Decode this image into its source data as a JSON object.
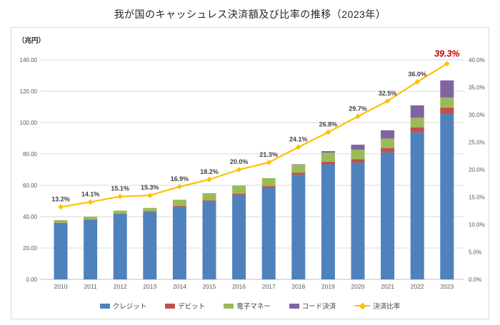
{
  "page_title": "我が国のキャッシュレス決済額及び比率の推移（2023年）",
  "chart_data": {
    "type": "bar",
    "subtype": "stacked-bar-with-line",
    "title": "我が国のキャッシュレス決済額及び比率の推移（2023年）",
    "categories": [
      "2010",
      "2011",
      "2012",
      "2013",
      "2014",
      "2015",
      "2016",
      "2017",
      "2018",
      "2019",
      "2020",
      "2021",
      "2022",
      "2023"
    ],
    "series": [
      {
        "key": "credit",
        "name": "クレジット",
        "type": "bar",
        "color": "#4F81BD",
        "values": [
          36.0,
          38.0,
          41.7,
          43.0,
          46.3,
          49.8,
          53.9,
          58.4,
          66.7,
          73.4,
          74.5,
          81.0,
          93.8,
          105.7
        ]
      },
      {
        "key": "debit",
        "name": "デビット",
        "type": "bar",
        "color": "#C0504D",
        "values": [
          0.2,
          0.3,
          0.3,
          0.4,
          0.5,
          0.6,
          0.8,
          1.1,
          1.4,
          1.7,
          2.2,
          2.8,
          3.2,
          3.9
        ]
      },
      {
        "key": "emoney",
        "name": "電子マネー",
        "type": "bar",
        "color": "#9BBB59",
        "values": [
          1.6,
          1.7,
          1.9,
          2.2,
          4.0,
          4.6,
          5.1,
          5.1,
          5.2,
          5.7,
          6.0,
          6.0,
          6.1,
          6.4
        ]
      },
      {
        "key": "code",
        "name": "コード決済",
        "type": "bar",
        "color": "#8064A2",
        "values": [
          0,
          0,
          0,
          0,
          0,
          0,
          0,
          0,
          0.2,
          1.0,
          3.2,
          5.3,
          7.9,
          10.9
        ]
      },
      {
        "key": "ratio",
        "name": "決済比率",
        "type": "line",
        "axis": "right",
        "color": "#FFC000",
        "values": [
          13.2,
          14.1,
          15.1,
          15.3,
          16.9,
          18.2,
          20.0,
          21.3,
          24.1,
          26.8,
          29.7,
          32.5,
          36.0,
          39.3
        ],
        "labels": [
          "13.2%",
          "14.1%",
          "15.1%",
          "15.3%",
          "16.9%",
          "18.2%",
          "20.0%",
          "21.3%",
          "24.1%",
          "26.8%",
          "29.7%",
          "32.5%",
          "36.0%",
          "39.3%"
        ],
        "label_color": "#404040",
        "last_label_style": {
          "color": "#C00000",
          "bold": true,
          "italic": true
        }
      }
    ],
    "left_axis": {
      "title": "（兆円）",
      "min": 0,
      "max": 140,
      "step": 20,
      "ticks": [
        "0.00",
        "20.00",
        "40.00",
        "60.00",
        "80.00",
        "100.00",
        "120.00",
        "140.00"
      ]
    },
    "right_axis": {
      "min": 0,
      "max": 40,
      "step": 5,
      "ticks": [
        "0.0%",
        "5.0%",
        "10.0%",
        "15.0%",
        "20.0%",
        "25.0%",
        "30.0%",
        "35.0%",
        "40.0%"
      ]
    },
    "grid": "horizontal",
    "legend_position": "bottom",
    "legend_entries": [
      "クレジット",
      "デビット",
      "電子マネー",
      "コード決済",
      "決済比率"
    ]
  }
}
